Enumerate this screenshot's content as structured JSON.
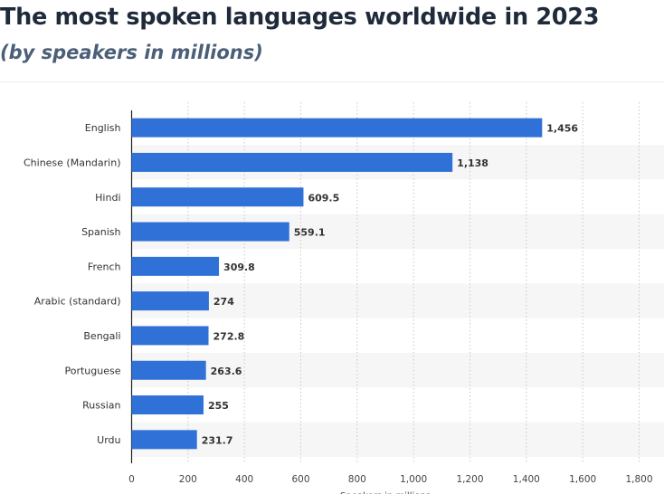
{
  "header": {
    "title": "The most spoken languages worldwide in 2023",
    "subtitle": "(by speakers in millions)"
  },
  "chart_data": {
    "type": "bar",
    "orientation": "horizontal",
    "categories": [
      "English",
      "Chinese (Mandarin)",
      "Hindi",
      "Spanish",
      "French",
      "Arabic (standard)",
      "Bengali",
      "Portuguese",
      "Russian",
      "Urdu"
    ],
    "values": [
      1456,
      1138,
      609.5,
      559.1,
      309.8,
      274,
      272.8,
      263.6,
      255,
      231.7
    ],
    "value_labels": [
      "1,456",
      "1,138",
      "609.5",
      "559.1",
      "309.8",
      "274",
      "272.8",
      "263.6",
      "255",
      "231.7"
    ],
    "xlabel": "Speakers in millions",
    "ylabel": "",
    "xlim": [
      0,
      1800
    ],
    "xticks": [
      0,
      200,
      400,
      600,
      800,
      1000,
      1200,
      1400,
      1600,
      1800
    ],
    "xtick_labels": [
      "0",
      "200",
      "400",
      "600",
      "800",
      "1,000",
      "1,200",
      "1,400",
      "1,600",
      "1,800"
    ],
    "grid": "vertical dotted",
    "legend": "none",
    "colors": {
      "bar": "#2f71d6",
      "band": "#f6f6f6",
      "grid": "#c8c8c8",
      "axis": "#222222"
    }
  }
}
